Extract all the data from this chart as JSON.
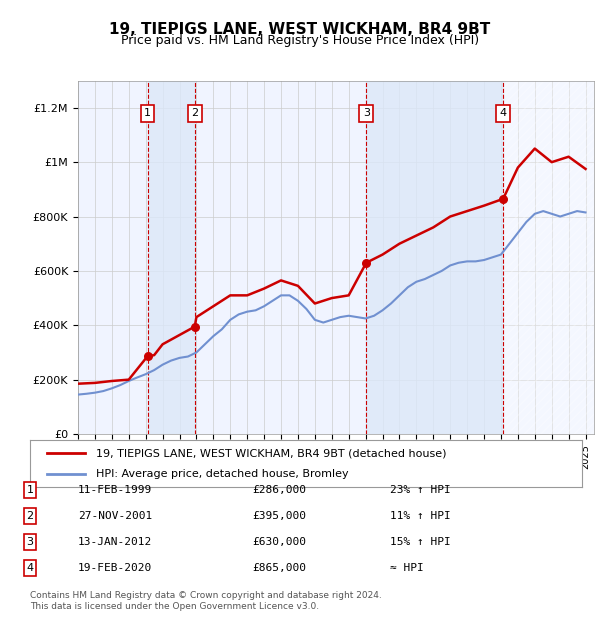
{
  "title": "19, TIEPIGS LANE, WEST WICKHAM, BR4 9BT",
  "subtitle": "Price paid vs. HM Land Registry's House Price Index (HPI)",
  "ylabel_ticks": [
    "£0",
    "£200K",
    "£400K",
    "£600K",
    "£800K",
    "£1M",
    "£1.2M"
  ],
  "ytick_values": [
    0,
    200000,
    400000,
    600000,
    800000,
    1000000,
    1200000
  ],
  "ylim": [
    0,
    1300000
  ],
  "xlim_start": 1995.0,
  "xlim_end": 2025.5,
  "background_color": "#ffffff",
  "plot_bg_color": "#f0f4ff",
  "hpi_line_color": "#7090d0",
  "price_line_color": "#cc0000",
  "vline_color": "#cc0000",
  "shade_color": "#dce8f8",
  "footer": "Contains HM Land Registry data © Crown copyright and database right 2024.\nThis data is licensed under the Open Government Licence v3.0.",
  "legend_line1": "19, TIEPIGS LANE, WEST WICKHAM, BR4 9BT (detached house)",
  "legend_line2": "HPI: Average price, detached house, Bromley",
  "sales": [
    {
      "num": 1,
      "date": "11-FEB-1999",
      "price": 286000,
      "year": 1999.11,
      "hpi_pct": "23% ↑ HPI"
    },
    {
      "num": 2,
      "date": "27-NOV-2001",
      "price": 395000,
      "year": 2001.9,
      "hpi_pct": "11% ↑ HPI"
    },
    {
      "num": 3,
      "date": "13-JAN-2012",
      "price": 630000,
      "year": 2012.04,
      "hpi_pct": "15% ↑ HPI"
    },
    {
      "num": 4,
      "date": "19-FEB-2020",
      "price": 865000,
      "year": 2020.13,
      "hpi_pct": "≈ HPI"
    }
  ],
  "hpi_data": {
    "years": [
      1995,
      1995.5,
      1996,
      1996.5,
      1997,
      1997.5,
      1998,
      1998.5,
      1999,
      1999.5,
      2000,
      2000.5,
      2001,
      2001.5,
      2002,
      2002.5,
      2003,
      2003.5,
      2004,
      2004.5,
      2005,
      2005.5,
      2006,
      2006.5,
      2007,
      2007.5,
      2008,
      2008.5,
      2009,
      2009.5,
      2010,
      2010.5,
      2011,
      2011.5,
      2012,
      2012.5,
      2013,
      2013.5,
      2014,
      2014.5,
      2015,
      2015.5,
      2016,
      2016.5,
      2017,
      2017.5,
      2018,
      2018.5,
      2019,
      2019.5,
      2020,
      2020.5,
      2021,
      2021.5,
      2022,
      2022.5,
      2023,
      2023.5,
      2024,
      2024.5,
      2025
    ],
    "values": [
      145000,
      148000,
      152000,
      158000,
      168000,
      180000,
      195000,
      208000,
      220000,
      235000,
      255000,
      270000,
      280000,
      285000,
      300000,
      330000,
      360000,
      385000,
      420000,
      440000,
      450000,
      455000,
      470000,
      490000,
      510000,
      510000,
      490000,
      460000,
      420000,
      410000,
      420000,
      430000,
      435000,
      430000,
      425000,
      435000,
      455000,
      480000,
      510000,
      540000,
      560000,
      570000,
      585000,
      600000,
      620000,
      630000,
      635000,
      635000,
      640000,
      650000,
      660000,
      700000,
      740000,
      780000,
      810000,
      820000,
      810000,
      800000,
      810000,
      820000,
      815000
    ]
  },
  "price_data": {
    "years": [
      1995,
      1996,
      1997,
      1998,
      1999.11,
      1999.5,
      2000,
      2001.9,
      2002,
      2003,
      2004,
      2005,
      2006,
      2007,
      2008,
      2009,
      2010,
      2011,
      2012.04,
      2013,
      2014,
      2015,
      2016,
      2017,
      2018,
      2019,
      2020.13,
      2021,
      2022,
      2023,
      2024,
      2025
    ],
    "values": [
      185000,
      188000,
      195000,
      200000,
      286000,
      290000,
      330000,
      395000,
      430000,
      470000,
      510000,
      510000,
      535000,
      565000,
      545000,
      480000,
      500000,
      510000,
      630000,
      660000,
      700000,
      730000,
      760000,
      800000,
      820000,
      840000,
      865000,
      980000,
      1050000,
      1000000,
      1020000,
      975000
    ]
  }
}
